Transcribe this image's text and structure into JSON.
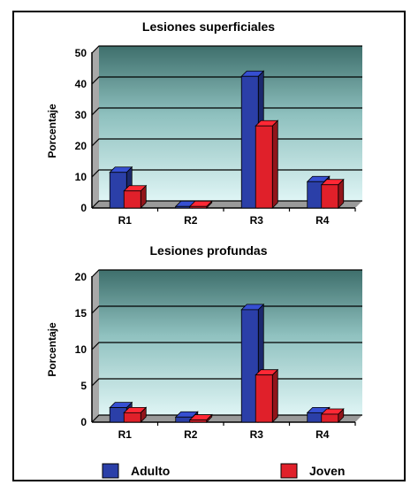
{
  "chart_data": [
    {
      "type": "bar",
      "title": "Lesiones superficiales",
      "ylabel": "Porcentaje",
      "xlabel": "",
      "ylim": [
        0,
        50
      ],
      "yticks": [
        0,
        10,
        20,
        30,
        40,
        50
      ],
      "categories": [
        "R1",
        "R2",
        "R3",
        "R4"
      ],
      "series": [
        {
          "name": "Adulto",
          "values": [
            11.5,
            0.5,
            42.5,
            8.5
          ]
        },
        {
          "name": "Joven",
          "values": [
            5.5,
            0.5,
            26.5,
            7.5
          ]
        }
      ],
      "grid": true
    },
    {
      "type": "bar",
      "title": "Lesiones profundas",
      "ylabel": "Porcentaje",
      "xlabel": "",
      "ylim": [
        0,
        20
      ],
      "yticks": [
        0,
        5,
        10,
        15,
        20
      ],
      "categories": [
        "R1",
        "R2",
        "R3",
        "R4"
      ],
      "series": [
        {
          "name": "Adulto",
          "values": [
            2,
            0.7,
            15.5,
            1.3
          ]
        },
        {
          "name": "Joven",
          "values": [
            1.3,
            0.3,
            6.5,
            1.1
          ]
        }
      ],
      "grid": true
    }
  ],
  "legend": {
    "position": "bottom",
    "items": [
      {
        "label": "Adulto",
        "color": "#2b3fa8"
      },
      {
        "label": "Joven",
        "color": "#e0202a"
      }
    ]
  },
  "colors": {
    "adulto": "#2b3fa8",
    "joven": "#e0202a",
    "plot_top": "#3e6f6c",
    "plot_bottom": "#d9f3f3"
  }
}
